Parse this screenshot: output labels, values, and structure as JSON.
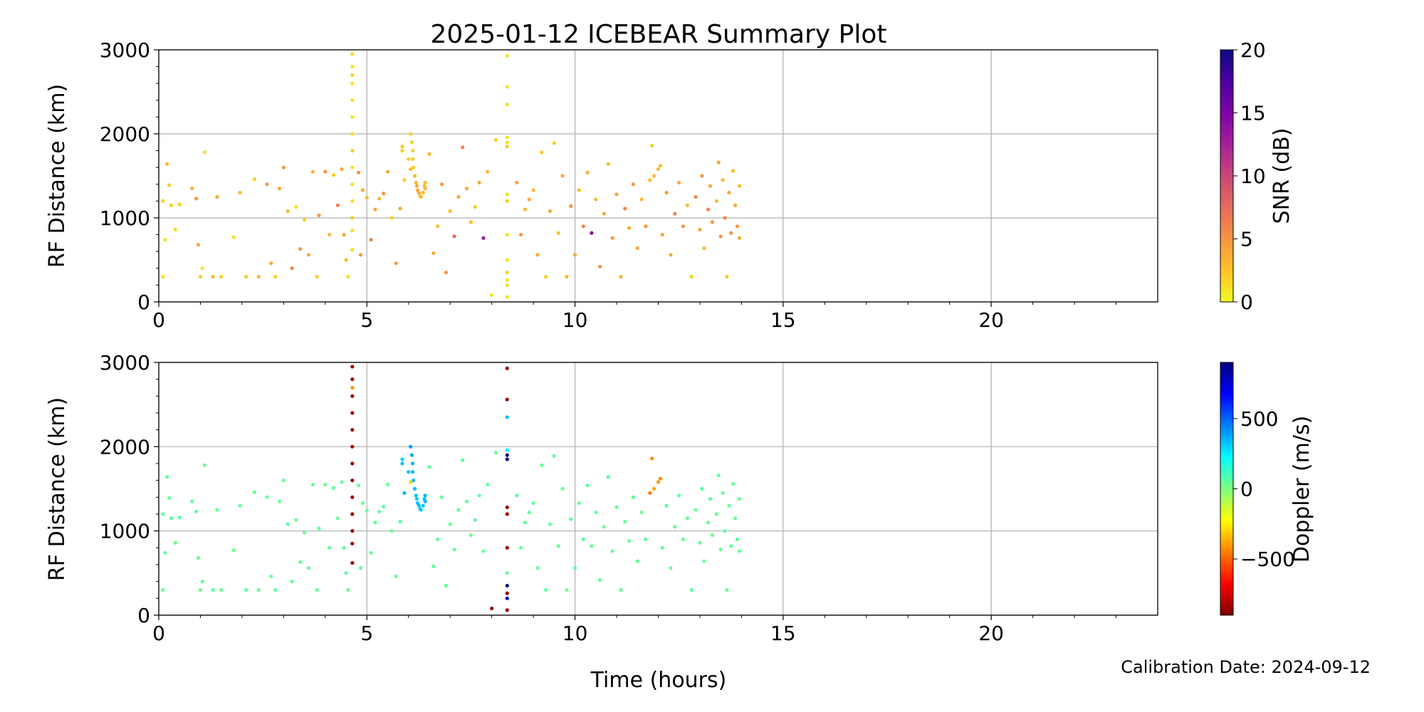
{
  "chart_data": [
    {
      "type": "scatter",
      "title": "2025-01-12 ICEBEAR Summary Plot",
      "xlabel": "Time (hours)",
      "ylabel": "RF Distance (km)",
      "xlim": [
        0,
        24
      ],
      "ylim": [
        0,
        3000
      ],
      "xticks": [
        "0",
        "5",
        "10",
        "15",
        "20"
      ],
      "yticks": [
        "0",
        "1000",
        "2000",
        "3000"
      ],
      "grid": true,
      "color_by": "snr",
      "colorbar": {
        "label": "SNR (dB)",
        "range": [
          0,
          20
        ],
        "ticks": [
          "0",
          "5",
          "10",
          "15",
          "20"
        ],
        "colormap": "plasma_r",
        "stops": [
          "#f0f921",
          "#fdc328",
          "#f89441",
          "#e56b5d",
          "#cb4778",
          "#a62098",
          "#7e03a8",
          "#4c02a1",
          "#0d0887"
        ]
      }
    },
    {
      "type": "scatter",
      "xlabel": "Time (hours)",
      "ylabel": "RF Distance (km)",
      "xlim": [
        0,
        24
      ],
      "ylim": [
        0,
        3000
      ],
      "xticks": [
        "0",
        "5",
        "10",
        "15",
        "20"
      ],
      "yticks": [
        "0",
        "1000",
        "2000",
        "3000"
      ],
      "grid": true,
      "color_by": "doppler",
      "colorbar": {
        "label": "Doppler (m/s)",
        "range": [
          -900,
          900
        ],
        "ticks": [
          "−500",
          "0",
          "500"
        ],
        "tick_values": [
          -500,
          0,
          500
        ],
        "colormap": "jet",
        "stops": [
          "#7f0000",
          "#ff0000",
          "#ff7f00",
          "#ffff00",
          "#7fff7f",
          "#00ffff",
          "#007fff",
          "#0000ff",
          "#00007f"
        ]
      }
    }
  ],
  "points_fields": [
    "time_hours",
    "rf_distance_km",
    "snr_db",
    "doppler_ms"
  ],
  "points": [
    [
      0.1,
      300,
      1,
      50
    ],
    [
      0.1,
      1200,
      2,
      60
    ],
    [
      0.15,
      740,
      1,
      40
    ],
    [
      0.2,
      1640,
      3,
      50
    ],
    [
      0.25,
      1390,
      2,
      30
    ],
    [
      0.3,
      1150,
      2,
      60
    ],
    [
      0.4,
      860,
      1,
      40
    ],
    [
      0.5,
      1160,
      2,
      70
    ],
    [
      0.8,
      1350,
      4,
      50
    ],
    [
      0.9,
      1230,
      5,
      60
    ],
    [
      0.95,
      680,
      4,
      30
    ],
    [
      1.0,
      300,
      2,
      40
    ],
    [
      1.05,
      400,
      1,
      50
    ],
    [
      1.1,
      1780,
      1,
      40
    ],
    [
      1.3,
      300,
      3,
      60
    ],
    [
      1.4,
      1250,
      4,
      50
    ],
    [
      1.5,
      300,
      2,
      40
    ],
    [
      1.8,
      770,
      1,
      30
    ],
    [
      1.95,
      1300,
      3,
      50
    ],
    [
      2.1,
      300,
      2,
      60
    ],
    [
      2.3,
      1460,
      2,
      40
    ],
    [
      2.4,
      300,
      3,
      50
    ],
    [
      2.6,
      1400,
      5,
      50
    ],
    [
      2.7,
      460,
      4,
      30
    ],
    [
      2.8,
      300,
      2,
      60
    ],
    [
      2.9,
      1350,
      4,
      40
    ],
    [
      3.0,
      1600,
      5,
      50
    ],
    [
      3.1,
      1080,
      3,
      60
    ],
    [
      3.2,
      400,
      6,
      50
    ],
    [
      3.3,
      1130,
      1,
      40
    ],
    [
      3.4,
      630,
      5,
      60
    ],
    [
      3.5,
      980,
      2,
      50
    ],
    [
      3.6,
      560,
      4,
      40
    ],
    [
      3.7,
      1550,
      3,
      50
    ],
    [
      3.8,
      300,
      2,
      60
    ],
    [
      3.85,
      1030,
      5,
      50
    ],
    [
      4.0,
      1550,
      5,
      40
    ],
    [
      4.1,
      800,
      3,
      50
    ],
    [
      4.2,
      1510,
      2,
      60
    ],
    [
      4.3,
      1150,
      6,
      50
    ],
    [
      4.4,
      1580,
      4,
      40
    ],
    [
      4.45,
      800,
      4,
      50
    ],
    [
      4.5,
      500,
      3,
      60
    ],
    [
      4.55,
      300,
      1,
      40
    ],
    [
      4.8,
      1540,
      5,
      50
    ],
    [
      4.85,
      560,
      5,
      60
    ],
    [
      4.9,
      1330,
      4,
      40
    ],
    [
      5.0,
      1240,
      3,
      50
    ],
    [
      5.1,
      740,
      6,
      60
    ],
    [
      5.2,
      1100,
      4,
      50
    ],
    [
      5.3,
      1230,
      3,
      40
    ],
    [
      5.4,
      1290,
      5,
      60
    ],
    [
      5.5,
      1550,
      4,
      50
    ],
    [
      5.6,
      1000,
      2,
      40
    ],
    [
      5.7,
      460,
      5,
      30
    ],
    [
      5.8,
      1110,
      4,
      60
    ],
    [
      6.5,
      1760,
      3,
      50
    ],
    [
      6.6,
      580,
      4,
      60
    ],
    [
      6.7,
      900,
      3,
      40
    ],
    [
      6.8,
      1400,
      5,
      50
    ],
    [
      6.9,
      350,
      5,
      60
    ],
    [
      7.0,
      1080,
      3,
      50
    ],
    [
      7.1,
      780,
      8,
      40
    ],
    [
      7.2,
      1250,
      4,
      50
    ],
    [
      7.3,
      1840,
      6,
      60
    ],
    [
      7.4,
      1350,
      4,
      50
    ],
    [
      7.5,
      950,
      3,
      40
    ],
    [
      7.6,
      1130,
      2,
      60
    ],
    [
      7.7,
      1420,
      4,
      50
    ],
    [
      7.8,
      760,
      13,
      40
    ],
    [
      7.9,
      1550,
      3,
      50
    ],
    [
      8.0,
      80,
      1,
      -850
    ],
    [
      8.1,
      1930,
      2,
      50
    ],
    [
      8.6,
      1420,
      4,
      60
    ],
    [
      8.7,
      800,
      5,
      50
    ],
    [
      8.8,
      1100,
      3,
      40
    ],
    [
      8.9,
      1220,
      4,
      60
    ],
    [
      9.0,
      1330,
      3,
      50
    ],
    [
      9.1,
      560,
      4,
      40
    ],
    [
      9.2,
      1780,
      2,
      50
    ],
    [
      9.3,
      300,
      2,
      60
    ],
    [
      9.4,
      1080,
      4,
      50
    ],
    [
      9.5,
      1890,
      2,
      40
    ],
    [
      9.6,
      820,
      3,
      60
    ],
    [
      9.7,
      1500,
      4,
      50
    ],
    [
      9.8,
      300,
      3,
      40
    ],
    [
      9.9,
      1140,
      5,
      60
    ],
    [
      10.0,
      560,
      4,
      50
    ],
    [
      10.1,
      1330,
      3,
      40
    ],
    [
      10.2,
      900,
      6,
      60
    ],
    [
      10.3,
      1540,
      4,
      50
    ],
    [
      10.4,
      820,
      14,
      40
    ],
    [
      10.5,
      1220,
      3,
      60
    ],
    [
      10.6,
      420,
      5,
      50
    ],
    [
      10.7,
      1050,
      4,
      40
    ],
    [
      10.8,
      1640,
      3,
      60
    ],
    [
      10.9,
      760,
      5,
      50
    ],
    [
      11.0,
      1280,
      4,
      40
    ],
    [
      11.1,
      300,
      3,
      60
    ],
    [
      11.2,
      1110,
      6,
      50
    ],
    [
      11.3,
      880,
      4,
      40
    ],
    [
      11.4,
      1400,
      5,
      60
    ],
    [
      11.5,
      640,
      4,
      50
    ],
    [
      11.6,
      1220,
      3,
      40
    ],
    [
      11.7,
      900,
      5,
      60
    ],
    [
      11.8,
      1450,
      3,
      -450
    ],
    [
      11.85,
      1860,
      2,
      -420
    ],
    [
      11.9,
      1500,
      3,
      -380
    ],
    [
      12.0,
      1580,
      3,
      -400
    ],
    [
      12.05,
      1620,
      3,
      -430
    ],
    [
      12.1,
      800,
      4,
      50
    ],
    [
      12.2,
      1300,
      5,
      60
    ],
    [
      12.3,
      560,
      4,
      40
    ],
    [
      12.4,
      1050,
      6,
      50
    ],
    [
      12.5,
      1420,
      4,
      60
    ],
    [
      12.6,
      900,
      5,
      40
    ],
    [
      12.7,
      1150,
      3,
      50
    ],
    [
      12.8,
      300,
      2,
      60
    ],
    [
      12.9,
      1250,
      6,
      40
    ],
    [
      13.0,
      860,
      4,
      50
    ],
    [
      13.05,
      1500,
      5,
      60
    ],
    [
      13.1,
      640,
      3,
      40
    ],
    [
      13.2,
      1100,
      6,
      50
    ],
    [
      13.25,
      1380,
      4,
      60
    ],
    [
      13.3,
      950,
      5,
      40
    ],
    [
      13.4,
      1200,
      3,
      50
    ],
    [
      13.45,
      1660,
      4,
      60
    ],
    [
      13.5,
      780,
      5,
      40
    ],
    [
      13.55,
      1450,
      3,
      50
    ],
    [
      13.6,
      1000,
      6,
      60
    ],
    [
      13.65,
      300,
      2,
      40
    ],
    [
      13.7,
      1300,
      4,
      50
    ],
    [
      13.75,
      820,
      5,
      60
    ],
    [
      13.8,
      1560,
      3,
      40
    ],
    [
      13.85,
      1150,
      4,
      50
    ],
    [
      13.9,
      900,
      5,
      60
    ],
    [
      13.95,
      1380,
      3,
      40
    ],
    [
      13.95,
      760,
      4,
      50
    ],
    [
      4.65,
      620,
      1,
      -850
    ],
    [
      4.65,
      850,
      1,
      -850
    ],
    [
      4.65,
      1000,
      2,
      -860
    ],
    [
      4.65,
      1200,
      1,
      -850
    ],
    [
      4.65,
      1400,
      1,
      -840
    ],
    [
      4.65,
      1600,
      1,
      -850
    ],
    [
      4.65,
      1800,
      2,
      -860
    ],
    [
      4.65,
      2000,
      1,
      -850
    ],
    [
      4.65,
      2200,
      1,
      -850
    ],
    [
      4.65,
      2400,
      1,
      -840
    ],
    [
      4.65,
      2600,
      1,
      -860
    ],
    [
      4.65,
      2700,
      2,
      -400
    ],
    [
      4.65,
      2800,
      1,
      -850
    ],
    [
      4.65,
      2950,
      1,
      -850
    ],
    [
      5.85,
      1850,
      2,
      300
    ],
    [
      5.85,
      1800,
      2,
      320
    ],
    [
      5.9,
      1450,
      2,
      350
    ],
    [
      6.0,
      1700,
      2,
      330
    ],
    [
      6.05,
      1580,
      3,
      -300
    ],
    [
      6.05,
      2000,
      2,
      400
    ],
    [
      6.08,
      1900,
      2,
      380
    ],
    [
      6.1,
      1800,
      2,
      360
    ],
    [
      6.1,
      1700,
      2,
      350
    ],
    [
      6.12,
      1600,
      2,
      340
    ],
    [
      6.15,
      1500,
      3,
      330
    ],
    [
      6.18,
      1420,
      3,
      320
    ],
    [
      6.2,
      1380,
      4,
      320
    ],
    [
      6.22,
      1330,
      4,
      330
    ],
    [
      6.25,
      1300,
      4,
      340
    ],
    [
      6.28,
      1260,
      3,
      330
    ],
    [
      6.3,
      1250,
      3,
      320
    ],
    [
      6.35,
      1300,
      3,
      330
    ],
    [
      6.38,
      1380,
      3,
      330
    ],
    [
      6.4,
      1350,
      3,
      340
    ],
    [
      6.4,
      1420,
      3,
      350
    ],
    [
      8.37,
      60,
      1,
      -850
    ],
    [
      8.37,
      200,
      1,
      800
    ],
    [
      8.37,
      260,
      1,
      -850
    ],
    [
      8.37,
      350,
      2,
      900
    ],
    [
      8.37,
      500,
      1,
      50
    ],
    [
      8.37,
      800,
      1,
      -850
    ],
    [
      8.37,
      1200,
      2,
      -850
    ],
    [
      8.37,
      1280,
      1,
      -850
    ],
    [
      8.37,
      1850,
      2,
      850
    ],
    [
      8.37,
      1900,
      1,
      900
    ],
    [
      8.37,
      1960,
      1,
      250
    ],
    [
      8.37,
      2350,
      1,
      350
    ],
    [
      8.37,
      2560,
      1,
      -850
    ],
    [
      8.37,
      2930,
      1,
      -850
    ]
  ],
  "footer": {
    "calibration": "Calibration Date: 2024-09-12"
  }
}
